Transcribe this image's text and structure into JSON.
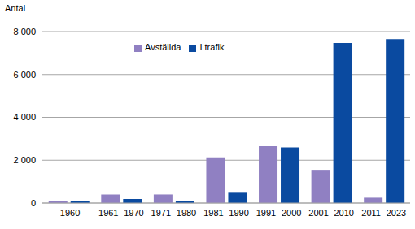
{
  "chart_data": {
    "type": "bar",
    "y_label": "Antal",
    "categories": [
      "-1960",
      "1961- 1970",
      "1971- 1980",
      "1981- 1990",
      "1991- 2000",
      "2001- 2010",
      "2011- 2023"
    ],
    "series": [
      {
        "name": "Avställda",
        "color": "#9080c2",
        "values": [
          80,
          400,
          400,
          2130,
          2650,
          1550,
          250
        ]
      },
      {
        "name": "I trafik",
        "color": "#0a4aa0",
        "values": [
          110,
          190,
          90,
          480,
          2600,
          7470,
          7650
        ]
      }
    ],
    "ylim": [
      0,
      8000
    ],
    "yticks": [
      0,
      {
        "value": 2000,
        "label": "2 000"
      },
      {
        "value": 4000,
        "label": "4 000"
      },
      {
        "value": 6000,
        "label": "6 000"
      },
      {
        "value": 8000,
        "label": "8 000"
      }
    ],
    "grid": true,
    "legend": "upper center"
  }
}
